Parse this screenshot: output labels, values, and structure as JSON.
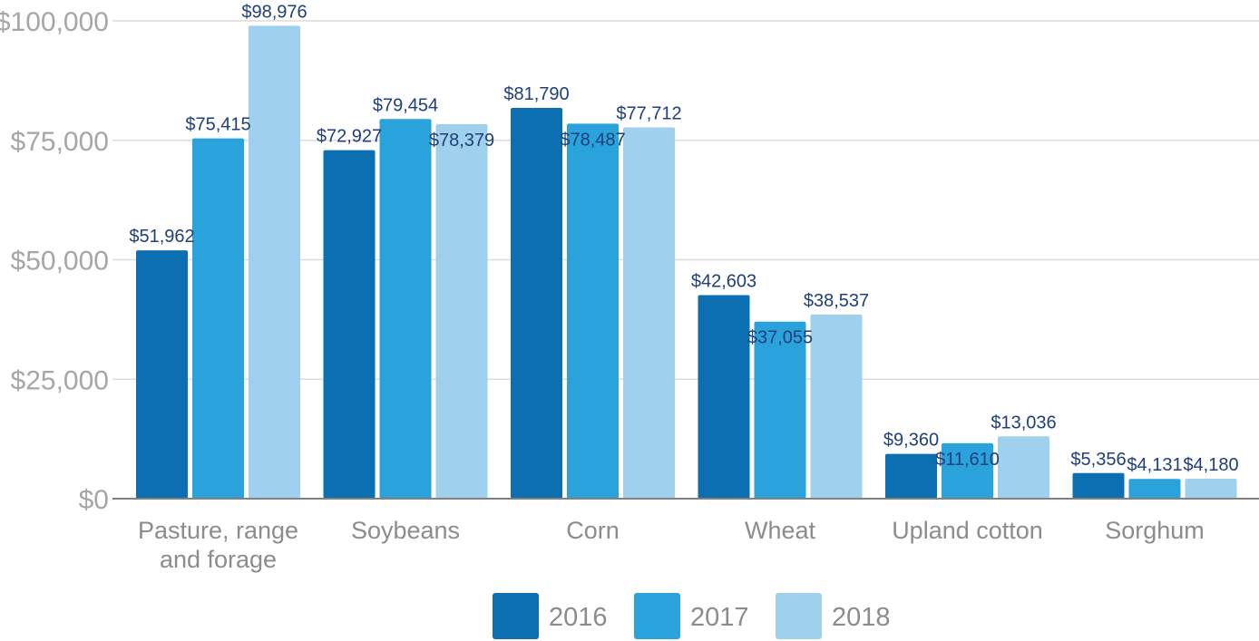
{
  "chart_data": {
    "type": "bar",
    "categories": [
      [
        "Pasture, range",
        "and forage"
      ],
      [
        "Soybeans"
      ],
      [
        "Corn"
      ],
      [
        "Wheat"
      ],
      [
        "Upland cotton"
      ],
      [
        "Sorghum"
      ]
    ],
    "series": [
      {
        "name": "2016",
        "color": "#0b6fb1",
        "values": [
          51962,
          72927,
          81790,
          42603,
          9360,
          5356
        ],
        "labels": [
          "$51,962",
          "$72,927",
          "$81,790",
          "$42,603",
          "$9,360",
          "$5,356"
        ]
      },
      {
        "name": "2017",
        "color": "#2aa2dc",
        "values": [
          75415,
          79454,
          78487,
          37055,
          11610,
          4131
        ],
        "labels": [
          "$75,415",
          "$79,454",
          "$78,487",
          "$37,055",
          "$11,610",
          "$4,131"
        ]
      },
      {
        "name": "2018",
        "color": "#9fd0ee",
        "values": [
          98976,
          78379,
          77712,
          38537,
          13036,
          4180
        ],
        "labels": [
          "$98,976",
          "$78,379",
          "$77,712",
          "$38,537",
          "$13,036",
          "$4,180"
        ]
      }
    ],
    "yticks": [
      0,
      25000,
      50000,
      75000,
      100000
    ],
    "ytick_labels": [
      "$0",
      "$25,000",
      "$50,000",
      "$75,000",
      "$100,000"
    ],
    "ylim": [
      0,
      100000
    ],
    "grid": true,
    "legend": "bottom-center"
  }
}
